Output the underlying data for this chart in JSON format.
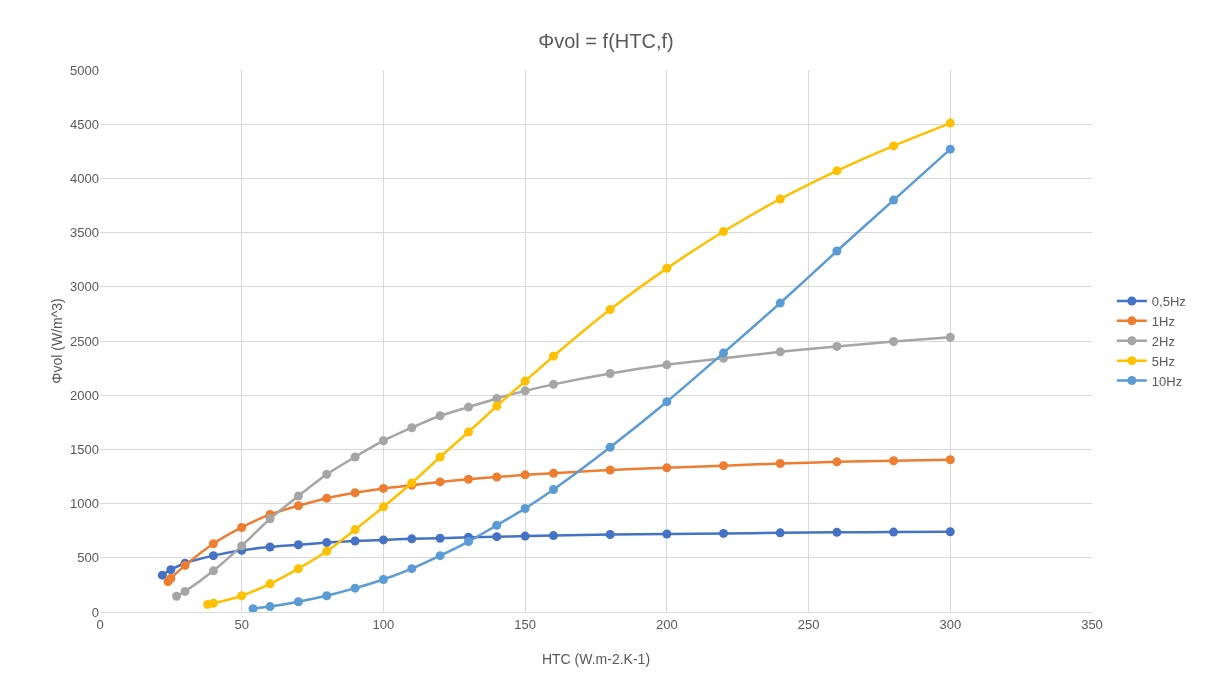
{
  "chart_data": {
    "type": "line",
    "title": "Φvol = f(HTC,f)",
    "xlabel": "HTC (W.m-2.K-1)",
    "ylabel": "Φvol (W/m^3)",
    "xlim": [
      0,
      350
    ],
    "xticks": [
      0,
      50,
      100,
      150,
      200,
      250,
      300,
      350
    ],
    "ylim": [
      0,
      5000
    ],
    "yticks": [
      0,
      500,
      1000,
      1500,
      2000,
      2500,
      3000,
      3500,
      4000,
      4500,
      5000
    ],
    "grid": true,
    "legend": "right",
    "marker": "circle",
    "line_style": "solid",
    "series": [
      {
        "name": "0,5Hz",
        "color": "#4472c4",
        "x": [
          22,
          25,
          30,
          40,
          50,
          60,
          70,
          80,
          90,
          100,
          110,
          120,
          130,
          140,
          150,
          160,
          180,
          200,
          220,
          240,
          260,
          280,
          300
        ],
        "values": [
          340,
          390,
          450,
          520,
          570,
          600,
          620,
          640,
          655,
          665,
          675,
          680,
          690,
          695,
          700,
          705,
          715,
          720,
          725,
          730,
          735,
          737,
          740
        ]
      },
      {
        "name": "1Hz",
        "color": "#ed7d31",
        "x": [
          24,
          25,
          30,
          40,
          50,
          60,
          70,
          80,
          90,
          100,
          110,
          120,
          130,
          140,
          150,
          160,
          180,
          200,
          220,
          240,
          260,
          280,
          300
        ],
        "values": [
          280,
          310,
          430,
          630,
          780,
          900,
          980,
          1050,
          1100,
          1140,
          1170,
          1200,
          1225,
          1245,
          1265,
          1280,
          1310,
          1330,
          1350,
          1370,
          1385,
          1395,
          1405
        ]
      },
      {
        "name": "2Hz",
        "color": "#a5a5a5",
        "x": [
          27,
          30,
          40,
          50,
          60,
          70,
          80,
          90,
          100,
          110,
          120,
          130,
          140,
          150,
          160,
          180,
          200,
          220,
          240,
          260,
          280,
          300
        ],
        "values": [
          145,
          190,
          380,
          610,
          860,
          1070,
          1270,
          1430,
          1580,
          1700,
          1810,
          1890,
          1970,
          2040,
          2100,
          2200,
          2280,
          2340,
          2400,
          2450,
          2495,
          2535
        ]
      },
      {
        "name": "5Hz",
        "color": "#ffc000",
        "x": [
          38,
          40,
          50,
          60,
          70,
          80,
          90,
          100,
          110,
          120,
          130,
          140,
          150,
          160,
          180,
          200,
          220,
          240,
          260,
          280,
          300
        ],
        "values": [
          70,
          80,
          150,
          260,
          400,
          560,
          760,
          970,
          1190,
          1430,
          1660,
          1900,
          2130,
          2360,
          2790,
          3170,
          3510,
          3810,
          4070,
          4300,
          4510
        ]
      },
      {
        "name": "10Hz",
        "color": "#5b9bd5",
        "x": [
          54,
          60,
          70,
          80,
          90,
          100,
          110,
          120,
          130,
          140,
          150,
          160,
          180,
          200,
          220,
          240,
          260,
          280,
          300
        ],
        "values": [
          30,
          50,
          95,
          150,
          220,
          300,
          400,
          520,
          650,
          800,
          955,
          1130,
          1520,
          1940,
          2390,
          2850,
          3330,
          3800,
          4270
        ]
      }
    ]
  }
}
